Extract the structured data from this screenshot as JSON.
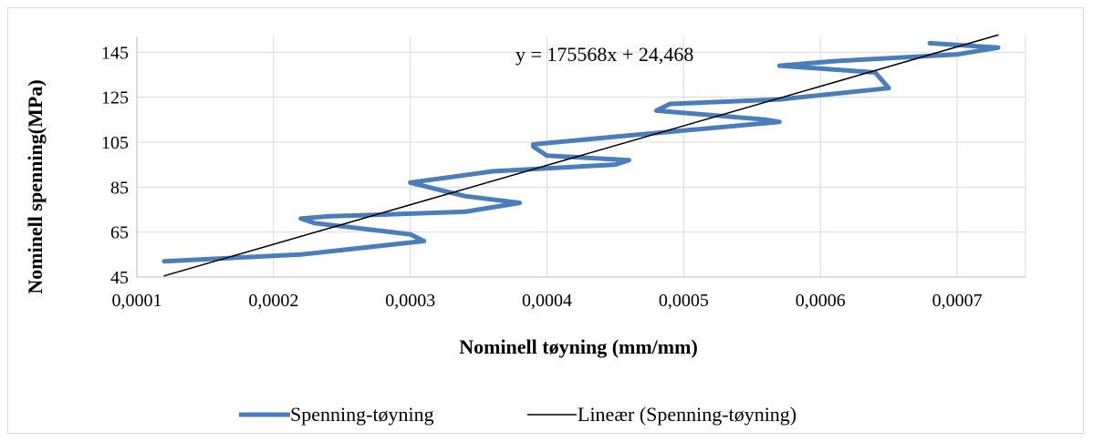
{
  "chart_data": {
    "type": "line",
    "title": "",
    "xlabel": "Nominell tøyning (mm/mm)",
    "ylabel": "Nominell spenning(MPa)",
    "xlim": [
      0.0001,
      0.00075
    ],
    "ylim": [
      45,
      152
    ],
    "x_ticks": [
      0.0001,
      0.0002,
      0.0003,
      0.0004,
      0.0005,
      0.0006,
      0.0007
    ],
    "x_tick_labels": [
      "0,0001",
      "0,0002",
      "0,0003",
      "0,0004",
      "0,0005",
      "0,0006",
      "0,0007"
    ],
    "y_ticks": [
      45,
      65,
      85,
      105,
      125,
      145
    ],
    "y_tick_labels": [
      "45",
      "65",
      "85",
      "105",
      "125",
      "145"
    ],
    "grid": "vertical and horizontal",
    "series": [
      {
        "name": "Spenning-tøyning",
        "color": "#4a7ebb",
        "x": [
          0.00012,
          0.00022,
          0.00031,
          0.0003,
          0.00023,
          0.00022,
          0.00024,
          0.00034,
          0.00038,
          0.00034,
          0.0003,
          0.00036,
          0.00045,
          0.00046,
          0.0004,
          0.00039,
          0.00039,
          0.00046,
          0.00057,
          0.00056,
          0.00048,
          0.00049,
          0.00057,
          0.00065,
          0.00064,
          0.00057,
          0.00061,
          0.0007,
          0.00073,
          0.00068
        ],
        "y": [
          52,
          55,
          61,
          64,
          69,
          71,
          72,
          74,
          78,
          81,
          87,
          92,
          95,
          97,
          99,
          103,
          104,
          108,
          114,
          115,
          119,
          122,
          124,
          129,
          136,
          139,
          141,
          144,
          147,
          149
        ]
      },
      {
        "name": "Lineær (Spenning-tøyning)",
        "color": "#000000",
        "x": [
          0.00012,
          0.00073
        ],
        "y": [
          45.536,
          152.633
        ]
      }
    ],
    "annotations": [
      {
        "text": "y = 175568x + 24,468"
      }
    ],
    "legend": {
      "position": "bottom",
      "entries": [
        "Spenning-tøyning",
        "Lineær (Spenning-tøyning)"
      ]
    }
  }
}
